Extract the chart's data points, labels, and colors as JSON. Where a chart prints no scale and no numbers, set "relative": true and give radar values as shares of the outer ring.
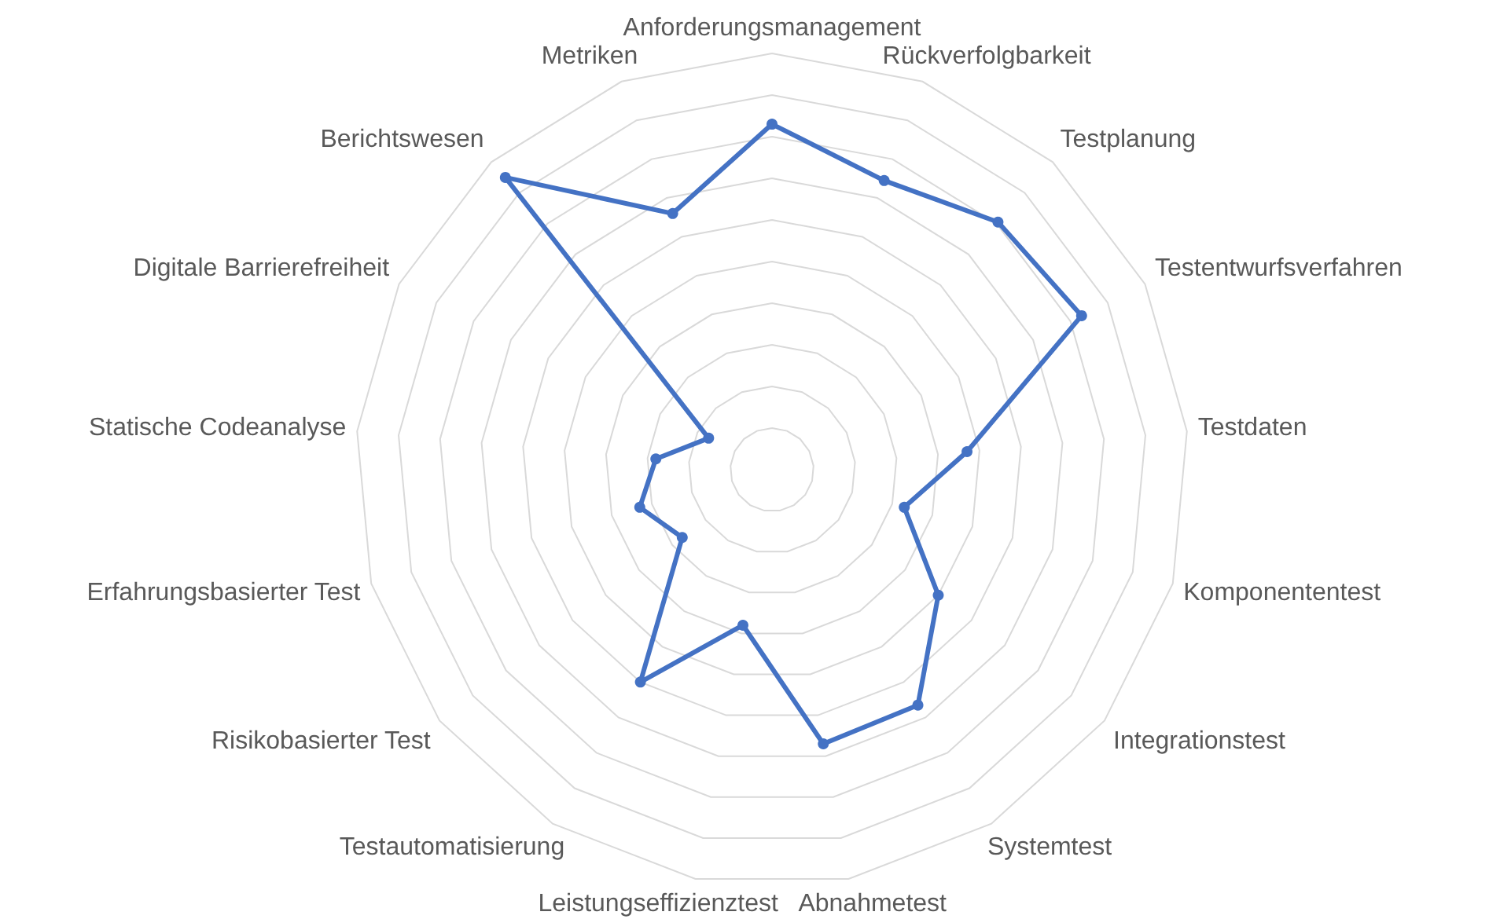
{
  "chart_data": {
    "type": "radar",
    "relative": true,
    "categories": [
      "Anforderungsmanagement",
      "Rückverfolgbarkeit",
      "Testplanung",
      "Testentwurfsverfahren",
      "Testdaten",
      "Komponententest",
      "Integrationstest",
      "Systemtest",
      "Abnahmetest",
      "Leistungseffizienztest",
      "Testautomatisierung",
      "Risikobasierter Test",
      "Erfahrungsbasierter Test",
      "Statische Codeanalyse",
      "Digitale Barrierefreiheit",
      "Berichtswesen",
      "Metriken"
    ],
    "series": [
      {
        "color": "#4472c4",
        "values": [
          0.83,
          0.745,
          0.805,
          0.83,
          0.47,
          0.33,
          0.5,
          0.665,
          0.67,
          0.38,
          0.6,
          0.27,
          0.33,
          0.28,
          0.17,
          0.95,
          0.66
        ]
      }
    ],
    "marker": "circle",
    "line_style": "solid",
    "grid": true
  }
}
